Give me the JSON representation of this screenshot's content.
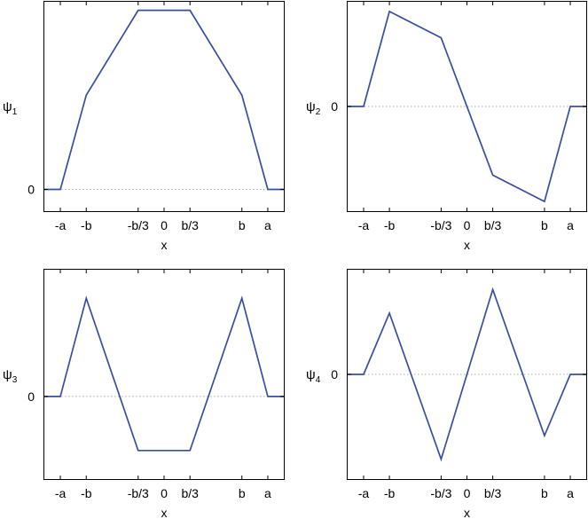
{
  "chart_data": [
    {
      "type": "line",
      "ylabel": "ψ",
      "ylabel_subscript": "1",
      "xlabel": "x",
      "xticks": [
        {
          "x": -1.333,
          "label": "-a"
        },
        {
          "x": -1.0,
          "label": "-b"
        },
        {
          "x": -0.333,
          "label": "-b/3"
        },
        {
          "x": 0.0,
          "label": "0"
        },
        {
          "x": 0.333,
          "label": "b/3"
        },
        {
          "x": 1.0,
          "label": "b"
        },
        {
          "x": 1.333,
          "label": "a"
        }
      ],
      "yticks": [
        {
          "y": 0,
          "label": "0"
        }
      ],
      "xlim": [
        -1.55,
        1.55
      ],
      "ylim": [
        -0.12,
        1.0
      ],
      "zero_line": true,
      "line_color": "#3a4ea0",
      "series": [
        {
          "x": [
            -1.55,
            -1.333,
            -1.0,
            -0.333,
            0.333,
            1.0,
            1.333,
            1.55
          ],
          "y": [
            0,
            0,
            0.5,
            0.95,
            0.95,
            0.5,
            0,
            0
          ]
        }
      ]
    },
    {
      "type": "line",
      "ylabel": "ψ",
      "ylabel_subscript": "2",
      "xlabel": "x",
      "xticks": [
        {
          "x": -1.333,
          "label": "-a"
        },
        {
          "x": -1.0,
          "label": "-b"
        },
        {
          "x": -0.333,
          "label": "-b/3"
        },
        {
          "x": 0.0,
          "label": "0"
        },
        {
          "x": 0.333,
          "label": "b/3"
        },
        {
          "x": 1.0,
          "label": "b"
        },
        {
          "x": 1.333,
          "label": "a"
        }
      ],
      "yticks": [
        {
          "y": 0,
          "label": "0"
        }
      ],
      "xlim": [
        -1.55,
        1.55
      ],
      "ylim": [
        -1.0,
        1.0
      ],
      "zero_line": true,
      "line_color": "#3a4ea0",
      "series": [
        {
          "x": [
            -1.55,
            -1.333,
            -1.0,
            -0.333,
            0.333,
            1.0,
            1.333,
            1.55
          ],
          "y": [
            0,
            0,
            0.9,
            0.65,
            -0.65,
            -0.9,
            0,
            0
          ]
        }
      ]
    },
    {
      "type": "line",
      "ylabel": "ψ",
      "ylabel_subscript": "3",
      "xlabel": "x",
      "xticks": [
        {
          "x": -1.333,
          "label": "-a"
        },
        {
          "x": -1.0,
          "label": "-b"
        },
        {
          "x": -0.333,
          "label": "-b/3"
        },
        {
          "x": 0.0,
          "label": "0"
        },
        {
          "x": 0.333,
          "label": "b/3"
        },
        {
          "x": 1.0,
          "label": "b"
        },
        {
          "x": 1.333,
          "label": "a"
        }
      ],
      "yticks": [
        {
          "y": 0,
          "label": "0"
        }
      ],
      "xlim": [
        -1.55,
        1.55
      ],
      "ylim": [
        -0.85,
        1.3
      ],
      "zero_line": true,
      "line_color": "#3a4ea0",
      "series": [
        {
          "x": [
            -1.55,
            -1.333,
            -1.0,
            -0.333,
            0.333,
            1.0,
            1.333,
            1.55
          ],
          "y": [
            0,
            0,
            1.0,
            -0.55,
            -0.55,
            1.0,
            0,
            0
          ]
        }
      ]
    },
    {
      "type": "line",
      "ylabel": "ψ",
      "ylabel_subscript": "4",
      "xlabel": "x",
      "xticks": [
        {
          "x": -1.333,
          "label": "-a"
        },
        {
          "x": -1.0,
          "label": "-b"
        },
        {
          "x": -0.333,
          "label": "-b/3"
        },
        {
          "x": 0.0,
          "label": "0"
        },
        {
          "x": 0.333,
          "label": "b/3"
        },
        {
          "x": 1.0,
          "label": "b"
        },
        {
          "x": 1.333,
          "label": "a"
        }
      ],
      "yticks": [
        {
          "y": 0,
          "label": "0"
        }
      ],
      "xlim": [
        -1.55,
        1.55
      ],
      "ylim": [
        -1.12,
        1.12
      ],
      "zero_line": true,
      "line_color": "#3a4ea0",
      "series": [
        {
          "x": [
            -1.55,
            -1.333,
            -1.0,
            -0.333,
            0.333,
            1.0,
            1.333,
            1.55
          ],
          "y": [
            0,
            0,
            0.65,
            -0.9,
            0.9,
            -0.65,
            0,
            0
          ]
        }
      ]
    }
  ]
}
